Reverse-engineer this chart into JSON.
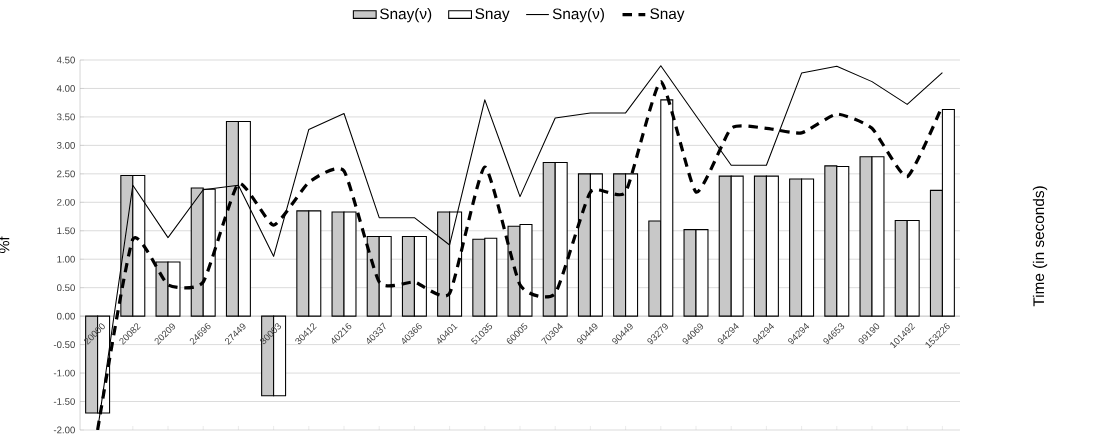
{
  "chart_data": {
    "type": "bar",
    "ylabel": "%f",
    "y2label": "Time (in seconds)",
    "categories": [
      "20000",
      "20082",
      "20209",
      "24696",
      "27449",
      "30003",
      "30412",
      "40216",
      "40337",
      "40366",
      "40401",
      "51035",
      "60005",
      "70304",
      "90449",
      "90449",
      "93279",
      "94069",
      "94294",
      "94294",
      "94294",
      "94653",
      "99190",
      "101492",
      "153226"
    ],
    "series": [
      {
        "name": "Snay(ν)",
        "color": "#c8c8c8",
        "values": [
          -1.7,
          2.47,
          0.95,
          2.25,
          3.42,
          -1.4,
          1.85,
          1.83,
          1.4,
          1.4,
          1.83,
          1.35,
          1.58,
          2.7,
          2.5,
          2.5,
          1.67,
          1.52,
          2.46,
          2.46,
          2.41,
          2.64,
          2.8,
          1.68,
          2.21
        ]
      },
      {
        "name": "Snay",
        "color": "#ffffff",
        "values": [
          -1.7,
          2.47,
          0.95,
          2.23,
          3.42,
          -1.4,
          1.85,
          1.83,
          1.4,
          1.4,
          1.83,
          1.37,
          1.61,
          2.7,
          2.5,
          2.5,
          3.8,
          1.52,
          2.46,
          2.46,
          2.41,
          2.63,
          2.8,
          1.68,
          3.63
        ]
      },
      {
        "name": "Snay(ν)",
        "type": "line",
        "color": "#000000",
        "line_style": "solid",
        "values": [
          -2.0,
          2.3,
          1.38,
          2.22,
          2.3,
          1.05,
          3.28,
          3.56,
          1.73,
          1.73,
          1.25,
          3.8,
          2.1,
          3.48,
          3.57,
          3.57,
          4.4,
          3.52,
          2.65,
          2.65,
          4.27,
          4.39,
          4.12,
          3.72,
          4.28
        ]
      },
      {
        "name": "Snay",
        "type": "line",
        "color": "#000000",
        "line_style": "dashed",
        "values": [
          -2.0,
          1.35,
          0.55,
          0.6,
          2.33,
          1.6,
          2.35,
          2.55,
          0.6,
          0.6,
          0.4,
          2.62,
          0.55,
          0.4,
          2.18,
          2.18,
          4.12,
          2.18,
          3.3,
          3.3,
          3.22,
          3.55,
          3.3,
          2.45,
          3.7
        ]
      }
    ],
    "ylim": [
      -2.0,
      4.5
    ],
    "yticks": [
      {
        "value": -2.0,
        "label": "-2.00"
      },
      {
        "value": -1.5,
        "label": "-1.50"
      },
      {
        "value": -1.0,
        "label": "-1.00"
      },
      {
        "value": -0.5,
        "label": "-0.50"
      },
      {
        "value": 0,
        "label": "0.00"
      },
      {
        "value": 0.5,
        "label": "0.50"
      },
      {
        "value": 1.0,
        "label": "1.00"
      },
      {
        "value": 1.5,
        "label": "1.50"
      },
      {
        "value": 2.0,
        "label": "2.00"
      },
      {
        "value": 2.5,
        "label": "2.50"
      },
      {
        "value": 3.0,
        "label": "3.00"
      },
      {
        "value": 3.5,
        "label": "3.50"
      },
      {
        "value": 4.0,
        "label": "4.00"
      },
      {
        "value": 4.5,
        "label": "4.50"
      }
    ],
    "grid": "y",
    "legend": "top",
    "marker": "none"
  }
}
